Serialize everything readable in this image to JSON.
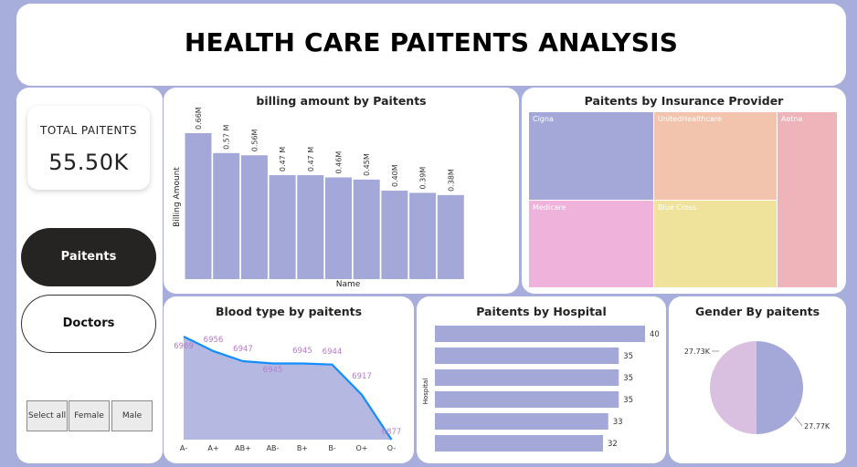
{
  "title": "HEALTH CARE PAITENTS ANALYSIS",
  "kpi": {
    "label": "TOTAL PAITENTS",
    "value": "55.50K"
  },
  "nav": {
    "paitents": "Paitents",
    "doctors": "Doctors"
  },
  "slicer": {
    "options": [
      "Select all",
      "Female",
      "Male"
    ]
  },
  "colors": {
    "accent": "#a3a8d9",
    "dark": "#252423",
    "line": "#118dff",
    "label": "#b57bc9"
  },
  "billing": {
    "title": "billing amount by Paitents",
    "ylabel": "Billing Amount",
    "xlabel": "Name",
    "bars": [
      {
        "value": 0.66,
        "label": "0.66M"
      },
      {
        "value": 0.57,
        "label": "0.57 M"
      },
      {
        "value": 0.56,
        "label": "0.56M"
      },
      {
        "value": 0.47,
        "label": "0.47 M"
      },
      {
        "value": 0.47,
        "label": "0.47 M"
      },
      {
        "value": 0.46,
        "label": "0.46M"
      },
      {
        "value": 0.45,
        "label": "0.45M"
      },
      {
        "value": 0.4,
        "label": "0.40M"
      },
      {
        "value": 0.39,
        "label": "0.39M"
      },
      {
        "value": 0.38,
        "label": "0.38M"
      }
    ]
  },
  "insurance": {
    "title": "Paitents by Insurance Provider",
    "tiles": [
      {
        "name": "Cigna",
        "color": "#a3a8d9"
      },
      {
        "name": "UnitedHealthcare",
        "color": "#f2c4ae"
      },
      {
        "name": "Aetna",
        "color": "#efb4ba"
      },
      {
        "name": "Medicare",
        "color": "#efb2db"
      },
      {
        "name": "Blue Cross",
        "color": "#efe29a"
      }
    ]
  },
  "blood": {
    "title": "Blood type by paitents",
    "categories": [
      "A-",
      "A+",
      "AB+",
      "AB-",
      "B+",
      "B-",
      "O+",
      "O-"
    ],
    "values": [
      6969,
      6956,
      6947,
      6945,
      6945,
      6944,
      6917,
      6877
    ],
    "labels": [
      "6969",
      "6956",
      "6947",
      "6945",
      "6945",
      "6944",
      "6917",
      "6877"
    ]
  },
  "hospital": {
    "title": "Paitents by Hospital",
    "ylabel": "Hospital",
    "values": [
      40,
      35,
      35,
      35,
      33,
      32
    ],
    "labels": [
      "40",
      "35",
      "35",
      "35",
      "33",
      "32"
    ]
  },
  "gender": {
    "title": "Gender By paitents",
    "slices": [
      {
        "value": 27.73,
        "label": "27.73K",
        "color": "#d9bfe0"
      },
      {
        "value": 27.77,
        "label": "27.77K",
        "color": "#a3a8d9"
      }
    ]
  },
  "chart_data": [
    {
      "type": "bar",
      "title": "billing amount by Paitents",
      "xlabel": "Name",
      "ylabel": "Billing Amount",
      "values": [
        0.66,
        0.57,
        0.56,
        0.47,
        0.47,
        0.46,
        0.45,
        0.4,
        0.39,
        0.38
      ],
      "unit": "M"
    },
    {
      "type": "area",
      "title": "Blood type by paitents",
      "categories": [
        "A-",
        "A+",
        "AB+",
        "AB-",
        "B+",
        "B-",
        "O+",
        "O-"
      ],
      "values": [
        6969,
        6956,
        6947,
        6945,
        6945,
        6944,
        6917,
        6877
      ]
    },
    {
      "type": "bar",
      "title": "Paitents by Hospital",
      "ylabel": "Hospital",
      "values": [
        40,
        35,
        35,
        35,
        33,
        32
      ]
    },
    {
      "type": "pie",
      "title": "Gender By paitents",
      "values": [
        27.73,
        27.77
      ],
      "labels": [
        "27.73K",
        "27.77K"
      ]
    }
  ]
}
